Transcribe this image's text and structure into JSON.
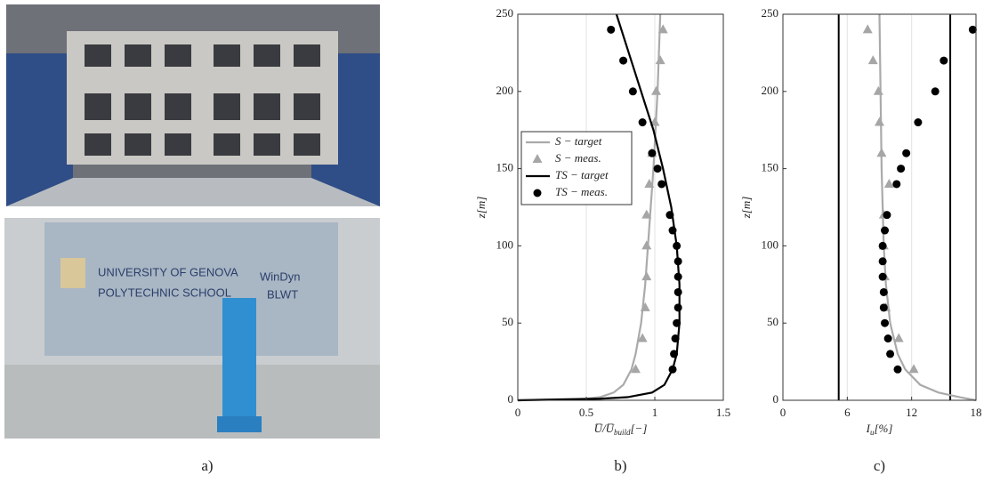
{
  "photos": {
    "bottom_texts": [
      "UNIVERSITY OF GENOVA",
      "POLYTECHNIC SCHOOL",
      "WinDyn",
      "BLWT"
    ],
    "caption": "a)"
  },
  "chart_data": [
    {
      "type": "profile",
      "caption": "b)",
      "xlabel": [
        "U̅/U̅",
        "build",
        "[−]"
      ],
      "ylabel": "z[m]",
      "xlim": [
        0,
        1.5
      ],
      "ylim": [
        0,
        250
      ],
      "xticks": [
        0,
        0.5,
        1,
        1.5
      ],
      "yticks": [
        0,
        50,
        100,
        150,
        200,
        250
      ],
      "grid_x": [
        0.5,
        1
      ],
      "legend": "middle-left",
      "series": [
        {
          "name": "S − target",
          "kind": "line",
          "color": "#aaaaaa",
          "x": [
            0,
            0.5,
            0.6,
            0.7,
            0.77,
            0.83,
            0.86,
            0.9,
            0.93,
            0.95,
            0.99,
            1.02,
            1.04
          ],
          "y": [
            0,
            1,
            2,
            5,
            10,
            20,
            30,
            50,
            75,
            100,
            150,
            200,
            250
          ]
        },
        {
          "name": "S − meas.",
          "kind": "triangle",
          "color": "#a6a6a6",
          "x": [
            1.06,
            1.04,
            1.01,
            1.0,
            0.98,
            0.96,
            0.94,
            0.94,
            0.94,
            0.93,
            0.91,
            0.86
          ],
          "y": [
            240,
            220,
            200,
            180,
            160,
            140,
            120,
            100,
            80,
            60,
            40,
            20
          ]
        },
        {
          "name": "TS − target",
          "kind": "line",
          "color": "#000000",
          "x": [
            0,
            0.6,
            0.8,
            0.98,
            1.07,
            1.13,
            1.16,
            1.18,
            1.18,
            1.16,
            1.12,
            1.06,
            0.99,
            0.9,
            0.81,
            0.72
          ],
          "y": [
            0,
            1,
            2,
            5,
            10,
            20,
            30,
            50,
            75,
            100,
            125,
            150,
            175,
            200,
            225,
            250
          ]
        },
        {
          "name": "TS − meas.",
          "kind": "circle",
          "color": "#000000",
          "x": [
            0.68,
            0.77,
            0.84,
            0.91,
            0.98,
            1.02,
            1.05,
            1.11,
            1.13,
            1.16,
            1.17,
            1.17,
            1.17,
            1.17,
            1.16,
            1.15,
            1.14,
            1.13
          ],
          "y": [
            240,
            220,
            200,
            180,
            160,
            150,
            140,
            120,
            110,
            100,
            90,
            80,
            70,
            60,
            50,
            40,
            30,
            20
          ]
        }
      ]
    },
    {
      "type": "profile",
      "caption": "c)",
      "xlabel": [
        "I",
        "u",
        "[%]"
      ],
      "ylabel": "z[m]",
      "xlim": [
        0,
        18
      ],
      "ylim": [
        0,
        250
      ],
      "xticks": [
        0,
        6,
        12,
        18
      ],
      "yticks": [
        0,
        50,
        100,
        150,
        200,
        250
      ],
      "grid_x": [
        6,
        12
      ],
      "ref_lines": {
        "color": "#000000",
        "values": [
          5.2,
          15.6
        ]
      },
      "series": [
        {
          "kind": "line",
          "color": "#aaaaaa",
          "x": [
            18,
            16.5,
            14.5,
            12.8,
            11.4,
            10.7,
            10.0,
            9.6,
            9.4,
            9.2,
            9.1,
            9.0
          ],
          "y": [
            0,
            2,
            5,
            10,
            20,
            30,
            50,
            75,
            100,
            150,
            200,
            250
          ]
        },
        {
          "kind": "triangle",
          "color": "#a6a6a6",
          "x": [
            7.9,
            8.4,
            8.9,
            9.0,
            9.2,
            9.9,
            9.4,
            9.4,
            9.5,
            9.6,
            10.8,
            12.2
          ],
          "y": [
            240,
            220,
            200,
            180,
            160,
            140,
            120,
            100,
            80,
            60,
            40,
            20
          ]
        },
        {
          "kind": "circle",
          "color": "#000000",
          "x": [
            17.7,
            15.0,
            14.2,
            12.6,
            11.5,
            11.0,
            10.6,
            9.7,
            9.5,
            9.3,
            9.3,
            9.3,
            9.4,
            9.4,
            9.5,
            9.8,
            10.0,
            10.7
          ],
          "y": [
            240,
            220,
            200,
            180,
            160,
            150,
            140,
            120,
            110,
            100,
            90,
            80,
            70,
            60,
            50,
            40,
            30,
            20
          ]
        }
      ]
    }
  ]
}
